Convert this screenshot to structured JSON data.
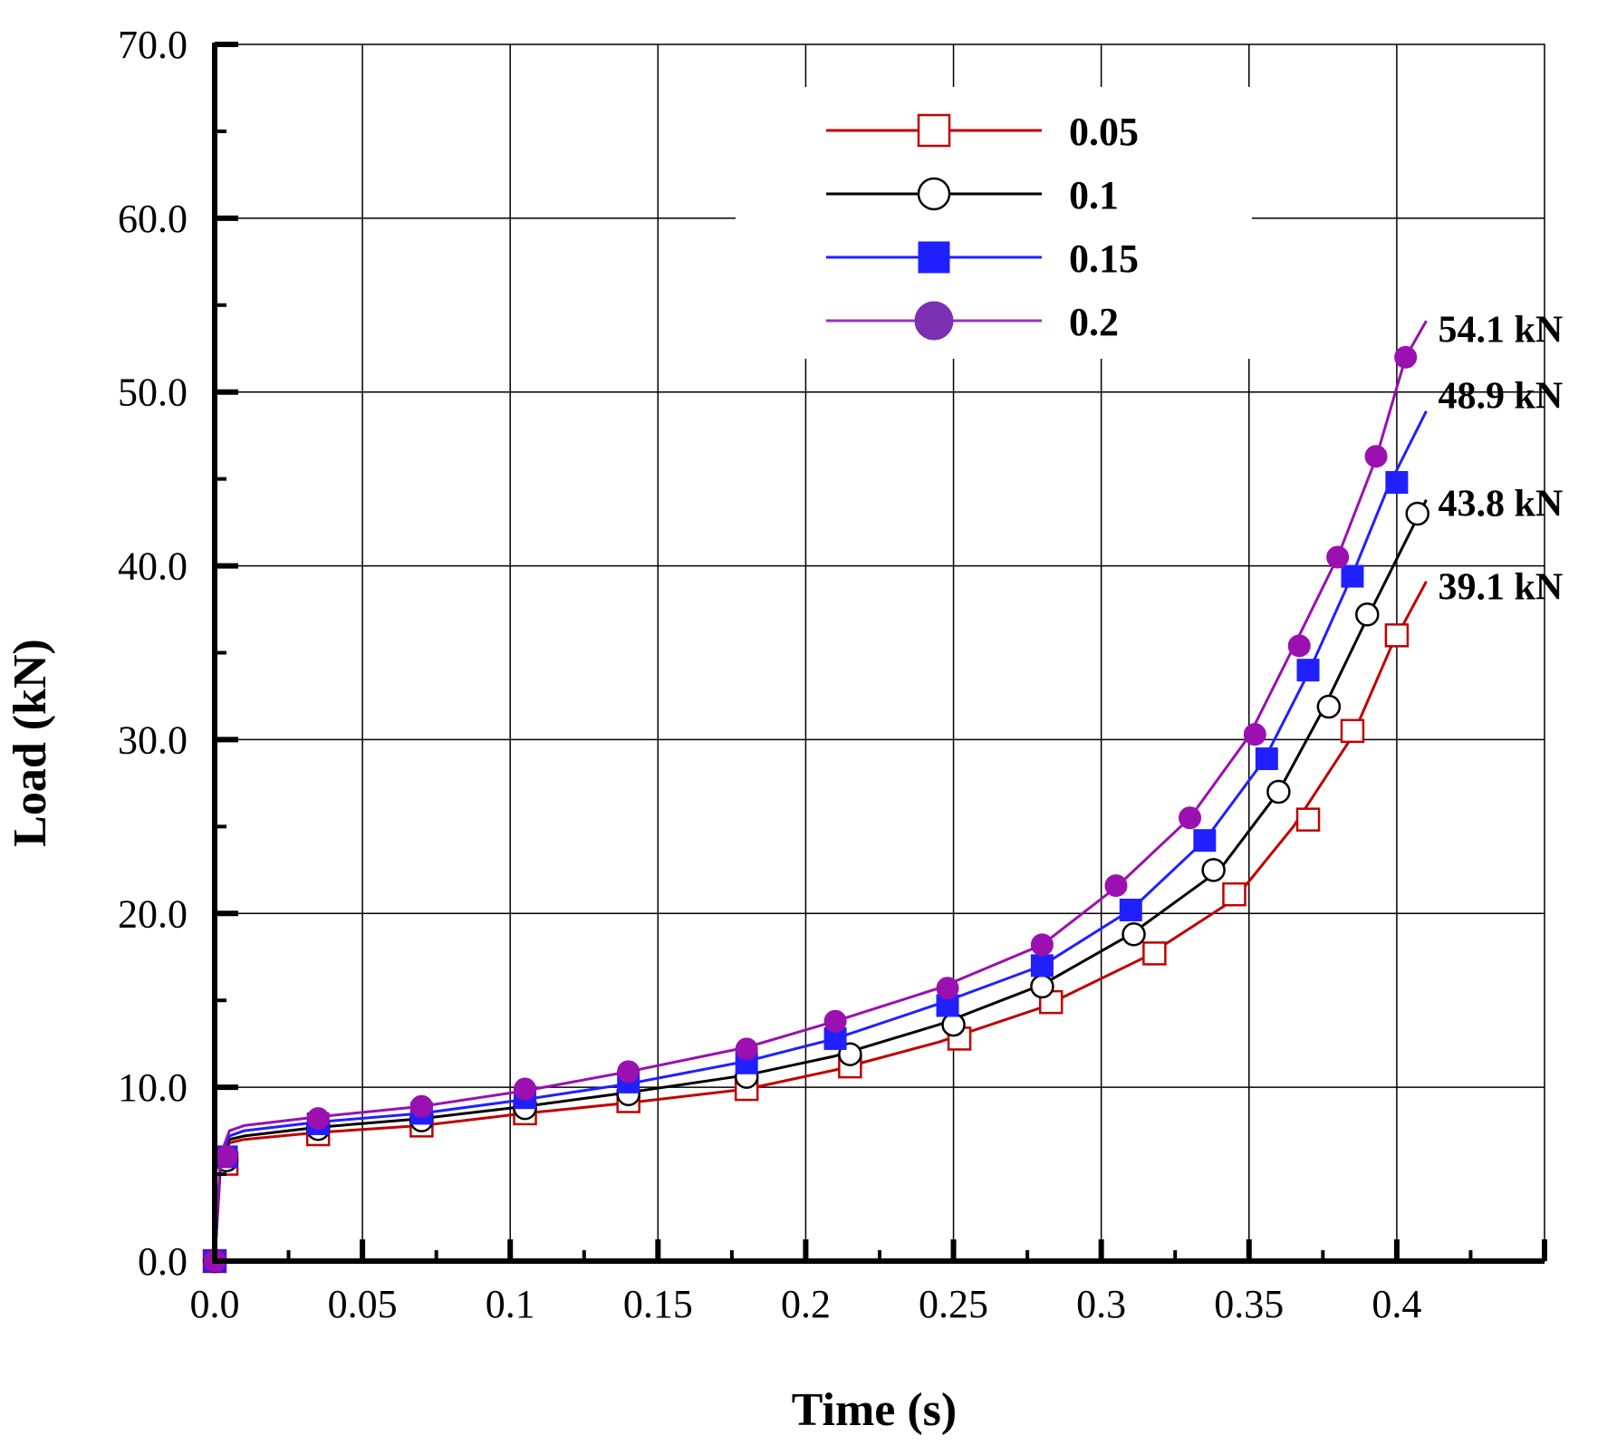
{
  "chart_data": {
    "type": "line",
    "title": "",
    "xlabel": "Time (s)",
    "ylabel": "Load  (kN)",
    "xlim": [
      0,
      0.45
    ],
    "ylim": [
      0,
      70
    ],
    "x_ticks": [
      "0.0",
      "0.05",
      "0.1",
      "0.15",
      "0.2",
      "0.25",
      "0.3",
      "0.35",
      "0.4"
    ],
    "x_tick_values": [
      0,
      0.05,
      0.1,
      0.15,
      0.2,
      0.25,
      0.3,
      0.35,
      0.4
    ],
    "y_ticks": [
      "0.0",
      "10.0",
      "20.0",
      "30.0",
      "40.0",
      "50.0",
      "60.0",
      "70.0"
    ],
    "y_tick_values": [
      0,
      10,
      20,
      30,
      40,
      50,
      60,
      70
    ],
    "grid": true,
    "legend_position": "top-center",
    "series": [
      {
        "name": "0.05",
        "color": "#c00000",
        "marker": "square-open",
        "end_label": "39.1 kN",
        "end_label_y": 38.8,
        "line": [
          [
            0,
            0
          ],
          [
            0.002,
            5.5
          ],
          [
            0.005,
            6.8
          ],
          [
            0.01,
            7.0
          ],
          [
            0.035,
            7.4
          ],
          [
            0.07,
            7.8
          ],
          [
            0.105,
            8.5
          ],
          [
            0.14,
            9.1
          ],
          [
            0.18,
            9.9
          ],
          [
            0.21,
            11.0
          ],
          [
            0.245,
            12.6
          ],
          [
            0.28,
            14.6
          ],
          [
            0.315,
            17.5
          ],
          [
            0.345,
            20.8
          ],
          [
            0.365,
            25.0
          ],
          [
            0.385,
            30.2
          ],
          [
            0.398,
            35.3
          ],
          [
            0.41,
            39.1
          ]
        ],
        "markers": [
          [
            0,
            0
          ],
          [
            0.004,
            5.6
          ],
          [
            0.035,
            7.3
          ],
          [
            0.07,
            7.8
          ],
          [
            0.105,
            8.5
          ],
          [
            0.14,
            9.2
          ],
          [
            0.18,
            9.9
          ],
          [
            0.215,
            11.2
          ],
          [
            0.252,
            12.8
          ],
          [
            0.283,
            14.9
          ],
          [
            0.318,
            17.7
          ],
          [
            0.345,
            21.1
          ],
          [
            0.37,
            25.4
          ],
          [
            0.385,
            30.5
          ],
          [
            0.4,
            36.0
          ]
        ]
      },
      {
        "name": "0.1",
        "color": "#000000",
        "marker": "circle-open",
        "end_label": "43.8 kN",
        "end_label_y": 43.6,
        "line": [
          [
            0,
            0
          ],
          [
            0.002,
            5.7
          ],
          [
            0.005,
            7.0
          ],
          [
            0.01,
            7.2
          ],
          [
            0.035,
            7.7
          ],
          [
            0.07,
            8.2
          ],
          [
            0.105,
            8.9
          ],
          [
            0.14,
            9.7
          ],
          [
            0.18,
            10.7
          ],
          [
            0.21,
            11.8
          ],
          [
            0.245,
            13.6
          ],
          [
            0.28,
            15.9
          ],
          [
            0.31,
            18.8
          ],
          [
            0.34,
            22.5
          ],
          [
            0.36,
            27.0
          ],
          [
            0.375,
            31.7
          ],
          [
            0.39,
            37.0
          ],
          [
            0.41,
            43.8
          ]
        ],
        "markers": [
          [
            0,
            0
          ],
          [
            0.004,
            5.8
          ],
          [
            0.035,
            7.6
          ],
          [
            0.07,
            8.1
          ],
          [
            0.105,
            8.8
          ],
          [
            0.14,
            9.6
          ],
          [
            0.18,
            10.6
          ],
          [
            0.215,
            11.9
          ],
          [
            0.25,
            13.6
          ],
          [
            0.28,
            15.8
          ],
          [
            0.311,
            18.8
          ],
          [
            0.338,
            22.5
          ],
          [
            0.36,
            27.0
          ],
          [
            0.377,
            31.9
          ],
          [
            0.39,
            37.2
          ],
          [
            0.407,
            43.0
          ]
        ]
      },
      {
        "name": "0.15",
        "color": "#2020ff",
        "marker": "square-filled",
        "end_label": "48.9 kN",
        "end_label_y": 49.8,
        "line": [
          [
            0,
            0
          ],
          [
            0.002,
            5.9
          ],
          [
            0.005,
            7.2
          ],
          [
            0.01,
            7.5
          ],
          [
            0.035,
            8.0
          ],
          [
            0.07,
            8.5
          ],
          [
            0.105,
            9.3
          ],
          [
            0.14,
            10.2
          ],
          [
            0.18,
            11.5
          ],
          [
            0.21,
            12.8
          ],
          [
            0.245,
            14.8
          ],
          [
            0.28,
            17.0
          ],
          [
            0.31,
            20.2
          ],
          [
            0.335,
            24.2
          ],
          [
            0.355,
            28.8
          ],
          [
            0.37,
            33.8
          ],
          [
            0.385,
            39.5
          ],
          [
            0.397,
            44.5
          ],
          [
            0.41,
            48.9
          ]
        ],
        "markers": [
          [
            0,
            0
          ],
          [
            0.004,
            6.0
          ],
          [
            0.035,
            7.9
          ],
          [
            0.07,
            8.5
          ],
          [
            0.105,
            9.4
          ],
          [
            0.14,
            10.3
          ],
          [
            0.18,
            11.4
          ],
          [
            0.21,
            12.8
          ],
          [
            0.248,
            14.7
          ],
          [
            0.28,
            17.0
          ],
          [
            0.31,
            20.2
          ],
          [
            0.335,
            24.2
          ],
          [
            0.356,
            28.9
          ],
          [
            0.37,
            34.0
          ],
          [
            0.385,
            39.4
          ],
          [
            0.4,
            44.8
          ]
        ]
      },
      {
        "name": "0.2",
        "color": "#9a10b0",
        "marker": "circle-filled",
        "end_label": "54.1 kN",
        "end_label_y": 53.6,
        "line": [
          [
            0,
            0
          ],
          [
            0.002,
            6.1
          ],
          [
            0.005,
            7.5
          ],
          [
            0.01,
            7.8
          ],
          [
            0.035,
            8.3
          ],
          [
            0.07,
            8.9
          ],
          [
            0.105,
            9.8
          ],
          [
            0.14,
            10.9
          ],
          [
            0.18,
            12.3
          ],
          [
            0.21,
            13.8
          ],
          [
            0.245,
            15.7
          ],
          [
            0.28,
            18.2
          ],
          [
            0.305,
            21.5
          ],
          [
            0.33,
            25.5
          ],
          [
            0.35,
            30.2
          ],
          [
            0.365,
            35.3
          ],
          [
            0.38,
            40.5
          ],
          [
            0.393,
            46.2
          ],
          [
            0.403,
            52.0
          ],
          [
            0.41,
            54.1
          ]
        ],
        "markers": [
          [
            0,
            0
          ],
          [
            0.004,
            6.0
          ],
          [
            0.035,
            8.2
          ],
          [
            0.07,
            8.9
          ],
          [
            0.105,
            9.9
          ],
          [
            0.14,
            10.9
          ],
          [
            0.18,
            12.2
          ],
          [
            0.21,
            13.8
          ],
          [
            0.248,
            15.7
          ],
          [
            0.28,
            18.2
          ],
          [
            0.305,
            21.6
          ],
          [
            0.33,
            25.5
          ],
          [
            0.352,
            30.3
          ],
          [
            0.367,
            35.4
          ],
          [
            0.38,
            40.5
          ],
          [
            0.393,
            46.3
          ],
          [
            0.403,
            52.0
          ]
        ]
      }
    ]
  }
}
